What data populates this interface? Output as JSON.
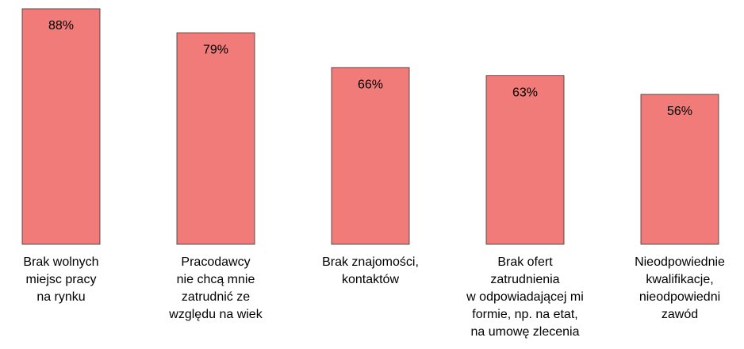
{
  "chart_data": {
    "type": "bar",
    "categories": [
      "Brak wolnych\nmiejsc pracy\nna rynku",
      "Pracodawcy\nnie chcą mnie\nzatrudnić ze\nwzględu na wiek",
      "Brak znajomości,\nkontaktów",
      "Brak ofert\nzatrudnienia\nw odpowiadającej mi\nformie, np. na etat,\nna umowę zlecenia",
      "Nieodpowiednie\nkwalifikacje,\nnieodpowiedni\nzawód"
    ],
    "values": [
      88,
      79,
      66,
      63,
      56
    ],
    "value_labels": [
      "88%",
      "79%",
      "66%",
      "63%",
      "56%"
    ],
    "color": "#f07b78"
  }
}
